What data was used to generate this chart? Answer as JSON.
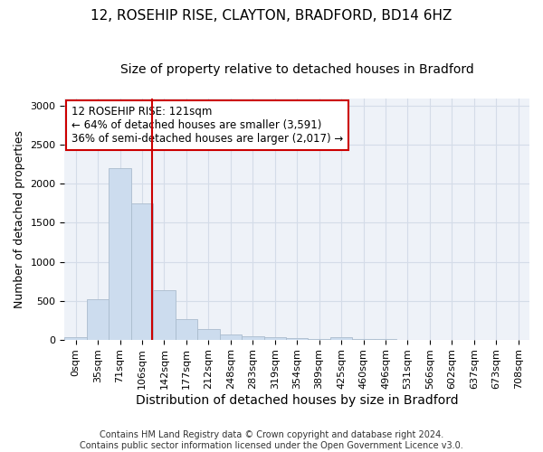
{
  "title1": "12, ROSEHIP RISE, CLAYTON, BRADFORD, BD14 6HZ",
  "title2": "Size of property relative to detached houses in Bradford",
  "xlabel": "Distribution of detached houses by size in Bradford",
  "ylabel": "Number of detached properties",
  "footnote": "Contains HM Land Registry data © Crown copyright and database right 2024.\nContains public sector information licensed under the Open Government Licence v3.0.",
  "bar_labels": [
    "0sqm",
    "35sqm",
    "71sqm",
    "106sqm",
    "142sqm",
    "177sqm",
    "212sqm",
    "248sqm",
    "283sqm",
    "319sqm",
    "354sqm",
    "389sqm",
    "425sqm",
    "460sqm",
    "496sqm",
    "531sqm",
    "566sqm",
    "602sqm",
    "637sqm",
    "673sqm",
    "708sqm"
  ],
  "bar_values": [
    25,
    520,
    2200,
    1750,
    635,
    265,
    140,
    70,
    40,
    25,
    15,
    10,
    30,
    5,
    3,
    0,
    0,
    0,
    0,
    0,
    0
  ],
  "bar_fill_color": "#ccdcee",
  "bar_edge_color": "#aabcce",
  "ylim": [
    0,
    3100
  ],
  "yticks": [
    0,
    500,
    1000,
    1500,
    2000,
    2500,
    3000
  ],
  "vline_x_index": 3.43,
  "vline_color": "#cc0000",
  "annotation_text": "12 ROSEHIP RISE: 121sqm\n← 64% of detached houses are smaller (3,591)\n36% of semi-detached houses are larger (2,017) →",
  "annotation_box_color": "#ffffff",
  "annotation_box_edge": "#cc0000",
  "title1_fontsize": 11,
  "title2_fontsize": 10,
  "xlabel_fontsize": 10,
  "ylabel_fontsize": 9,
  "tick_fontsize": 8,
  "annotation_fontsize": 8.5,
  "footnote_fontsize": 7,
  "grid_color": "#d4dce8",
  "background_color": "#eef2f8"
}
